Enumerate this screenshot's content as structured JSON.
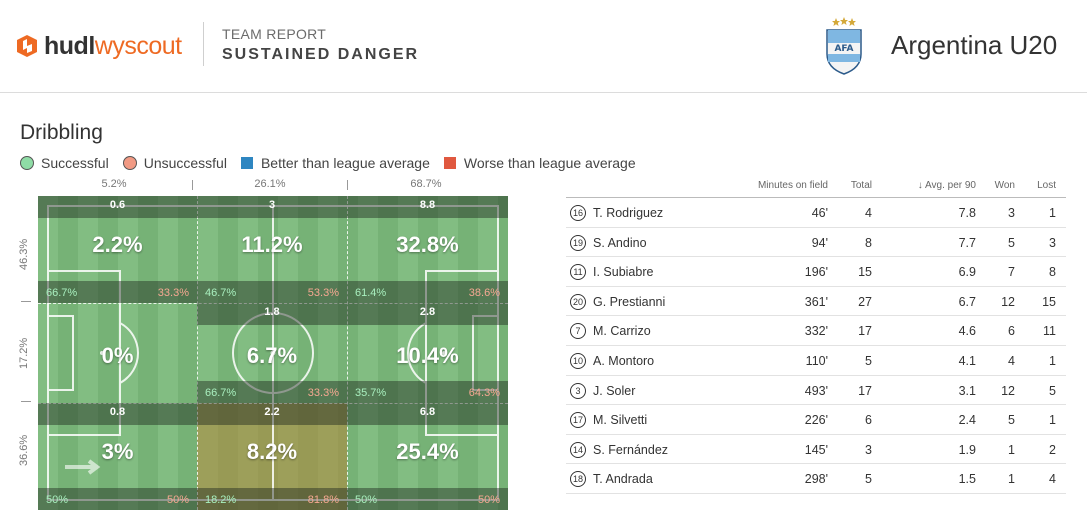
{
  "header": {
    "brand_hudl": "hudl",
    "brand_wyscout": "wyscout",
    "kicker": "TEAM REPORT",
    "title": "SUSTAINED DANGER",
    "team_name": "Argentina U20"
  },
  "section": {
    "title": "Dribbling",
    "legend": {
      "successful": "Successful",
      "unsuccessful": "Unsuccessful",
      "better": "Better than league average",
      "worse": "Worse than league average"
    }
  },
  "columns": [
    "5.2%",
    "26.1%",
    "68.7%"
  ],
  "rows": [
    "46.3%",
    "17.2%",
    "36.6%"
  ],
  "zones": [
    {
      "count": "0.6",
      "pct": "2.2%",
      "succ": "66.7%",
      "fail": "33.3%",
      "tint": "none"
    },
    {
      "count": "3",
      "pct": "11.2%",
      "succ": "46.7%",
      "fail": "53.3%",
      "tint": "none"
    },
    {
      "count": "8.8",
      "pct": "32.8%",
      "succ": "61.4%",
      "fail": "38.6%",
      "tint": "none"
    },
    {
      "count": "",
      "pct": "0%",
      "succ": "",
      "fail": "",
      "tint": "none"
    },
    {
      "count": "1.8",
      "pct": "6.7%",
      "succ": "66.7%",
      "fail": "33.3%",
      "tint": "none"
    },
    {
      "count": "2.8",
      "pct": "10.4%",
      "succ": "35.7%",
      "fail": "64.3%",
      "tint": "none"
    },
    {
      "count": "0.8",
      "pct": "3%",
      "succ": "50%",
      "fail": "50%",
      "tint": "none"
    },
    {
      "count": "2.2",
      "pct": "8.2%",
      "succ": "18.2%",
      "fail": "81.8%",
      "tint": "worse"
    },
    {
      "count": "6.8",
      "pct": "25.4%",
      "succ": "50%",
      "fail": "50%",
      "tint": "none"
    }
  ],
  "table": {
    "headers": {
      "minutes": "Minutes on field",
      "total": "Total",
      "avg": "↓ Avg. per 90",
      "won": "Won",
      "lost": "Lost"
    },
    "rows": [
      {
        "num": "16",
        "name": "T. Rodriguez",
        "minutes": "46'",
        "total": "4",
        "avg": "7.8",
        "won": "3",
        "lost": "1"
      },
      {
        "num": "19",
        "name": "S. Andino",
        "minutes": "94'",
        "total": "8",
        "avg": "7.7",
        "won": "5",
        "lost": "3"
      },
      {
        "num": "11",
        "name": "I. Subiabre",
        "minutes": "196'",
        "total": "15",
        "avg": "6.9",
        "won": "7",
        "lost": "8"
      },
      {
        "num": "20",
        "name": "G. Prestianni",
        "minutes": "361'",
        "total": "27",
        "avg": "6.7",
        "won": "12",
        "lost": "15"
      },
      {
        "num": "7",
        "name": "M. Carrizo",
        "minutes": "332'",
        "total": "17",
        "avg": "4.6",
        "won": "6",
        "lost": "11"
      },
      {
        "num": "10",
        "name": "A. Montoro",
        "minutes": "110'",
        "total": "5",
        "avg": "4.1",
        "won": "4",
        "lost": "1"
      },
      {
        "num": "3",
        "name": "J. Soler",
        "minutes": "493'",
        "total": "17",
        "avg": "3.1",
        "won": "12",
        "lost": "5"
      },
      {
        "num": "17",
        "name": "M. Silvetti",
        "minutes": "226'",
        "total": "6",
        "avg": "2.4",
        "won": "5",
        "lost": "1"
      },
      {
        "num": "14",
        "name": "S. Fernández",
        "minutes": "145'",
        "total": "3",
        "avg": "1.9",
        "won": "1",
        "lost": "2"
      },
      {
        "num": "18",
        "name": "T. Andrada",
        "minutes": "298'",
        "total": "5",
        "avg": "1.5",
        "won": "1",
        "lost": "4"
      }
    ]
  },
  "colors": {
    "brand_orange": "#ee6a23",
    "pitch_green": "#7cb87c",
    "successful": "#8fdca6",
    "unsuccessful": "#f19a84",
    "better": "#2e86c1",
    "worse": "#e0583f"
  },
  "icons": {
    "logo": "hudl-logo-icon",
    "crest": "afa-crest-icon",
    "direction": "attack-direction-arrow-icon"
  }
}
